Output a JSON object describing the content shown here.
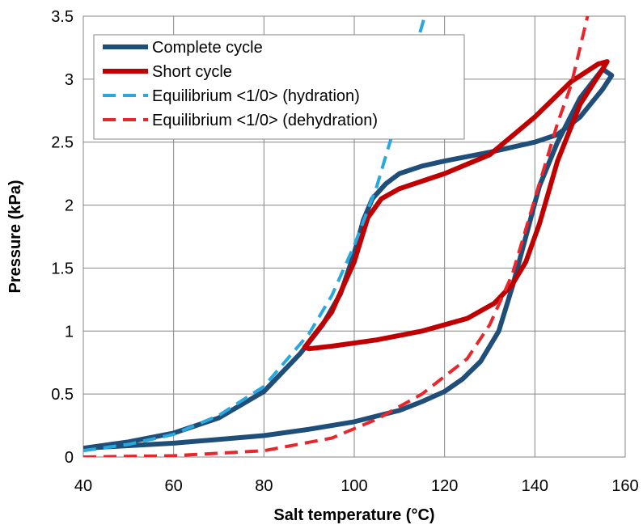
{
  "chart_data": {
    "type": "line",
    "title": "",
    "xlabel": "Salt temperature (°C)",
    "ylabel": "Pressure (kPa)",
    "xlim": [
      40,
      160
    ],
    "ylim": [
      0,
      3.5
    ],
    "x_ticks": [
      "40",
      "60",
      "80",
      "100",
      "120",
      "140",
      "160"
    ],
    "y_ticks": [
      "0",
      "0.5",
      "1",
      "1.5",
      "2",
      "2.5",
      "3",
      "3.5"
    ],
    "grid": true,
    "legend_position": "top-left",
    "series": [
      {
        "name": "Complete cycle",
        "color": "#1F4E79",
        "dash": "solid",
        "points": [
          [
            40,
            0.07
          ],
          [
            50,
            0.12
          ],
          [
            60,
            0.19
          ],
          [
            70,
            0.31
          ],
          [
            80,
            0.52
          ],
          [
            88,
            0.82
          ],
          [
            93,
            1.05
          ],
          [
            97,
            1.3
          ],
          [
            100,
            1.62
          ],
          [
            102,
            1.88
          ],
          [
            104,
            2.05
          ],
          [
            107,
            2.17
          ],
          [
            110,
            2.25
          ],
          [
            115,
            2.31
          ],
          [
            120,
            2.35
          ],
          [
            130,
            2.42
          ],
          [
            140,
            2.5
          ],
          [
            145,
            2.56
          ],
          [
            150,
            2.7
          ],
          [
            155,
            2.92
          ],
          [
            157,
            3.03
          ],
          [
            155,
            3.08
          ],
          [
            150,
            2.85
          ],
          [
            145,
            2.5
          ],
          [
            141,
            2.15
          ],
          [
            138,
            1.75
          ],
          [
            135,
            1.35
          ],
          [
            132,
            1.0
          ],
          [
            128,
            0.76
          ],
          [
            124,
            0.62
          ],
          [
            120,
            0.52
          ],
          [
            115,
            0.44
          ],
          [
            110,
            0.37
          ],
          [
            100,
            0.28
          ],
          [
            90,
            0.22
          ],
          [
            80,
            0.17
          ],
          [
            70,
            0.14
          ],
          [
            60,
            0.11
          ],
          [
            50,
            0.09
          ],
          [
            40,
            0.07
          ]
        ]
      },
      {
        "name": "Short cycle",
        "color": "#C00000",
        "dash": "solid",
        "points": [
          [
            89,
            0.87
          ],
          [
            95,
            1.15
          ],
          [
            100,
            1.55
          ],
          [
            103,
            1.9
          ],
          [
            106,
            2.05
          ],
          [
            110,
            2.13
          ],
          [
            120,
            2.25
          ],
          [
            130,
            2.4
          ],
          [
            140,
            2.7
          ],
          [
            148,
            2.98
          ],
          [
            154,
            3.12
          ],
          [
            156,
            3.14
          ],
          [
            155,
            3.08
          ],
          [
            150,
            2.8
          ],
          [
            145,
            2.35
          ],
          [
            141,
            1.85
          ],
          [
            138,
            1.55
          ],
          [
            135,
            1.37
          ],
          [
            131,
            1.22
          ],
          [
            125,
            1.1
          ],
          [
            115,
            1.0
          ],
          [
            105,
            0.93
          ],
          [
            95,
            0.88
          ],
          [
            90,
            0.86
          ],
          [
            89,
            0.87
          ]
        ]
      },
      {
        "name": "Equilibrium <1/0> (hydration)",
        "color": "#29A8E0",
        "dash": "dashed",
        "points": [
          [
            40,
            0.05
          ],
          [
            50,
            0.1
          ],
          [
            60,
            0.18
          ],
          [
            70,
            0.33
          ],
          [
            80,
            0.56
          ],
          [
            90,
            0.98
          ],
          [
            95,
            1.28
          ],
          [
            100,
            1.68
          ],
          [
            105,
            2.15
          ],
          [
            110,
            2.75
          ],
          [
            114,
            3.3
          ],
          [
            116,
            3.55
          ]
        ]
      },
      {
        "name": "Equilibrium <1/0> (dehydration)",
        "color": "#E8262B",
        "dash": "dashed",
        "points": [
          [
            40,
            0.0
          ],
          [
            60,
            0.01
          ],
          [
            80,
            0.05
          ],
          [
            95,
            0.15
          ],
          [
            105,
            0.3
          ],
          [
            115,
            0.5
          ],
          [
            125,
            0.78
          ],
          [
            130,
            1.05
          ],
          [
            135,
            1.45
          ],
          [
            140,
            2.05
          ],
          [
            145,
            2.65
          ],
          [
            148,
            2.95
          ],
          [
            150,
            3.25
          ],
          [
            152,
            3.55
          ]
        ]
      }
    ]
  }
}
